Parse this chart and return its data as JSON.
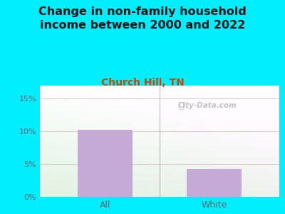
{
  "title": "Change in non-family household\nincome between 2000 and 2022",
  "subtitle": "Church Hill, TN",
  "categories": [
    "All",
    "White"
  ],
  "values": [
    10.2,
    4.3
  ],
  "bar_color": "#c4aad4",
  "title_fontsize": 11.5,
  "subtitle_fontsize": 10,
  "subtitle_color": "#cc4400",
  "title_color": "#111111",
  "tick_color": "#666666",
  "ylim": [
    0,
    17
  ],
  "yticks": [
    0,
    5,
    10,
    15
  ],
  "ytick_labels": [
    "0%",
    "5%",
    "10%",
    "15%"
  ],
  "background_outer": "#00eeff",
  "watermark": "City-Data.com",
  "grid_color": "#ddcccc",
  "bar_width": 0.5
}
